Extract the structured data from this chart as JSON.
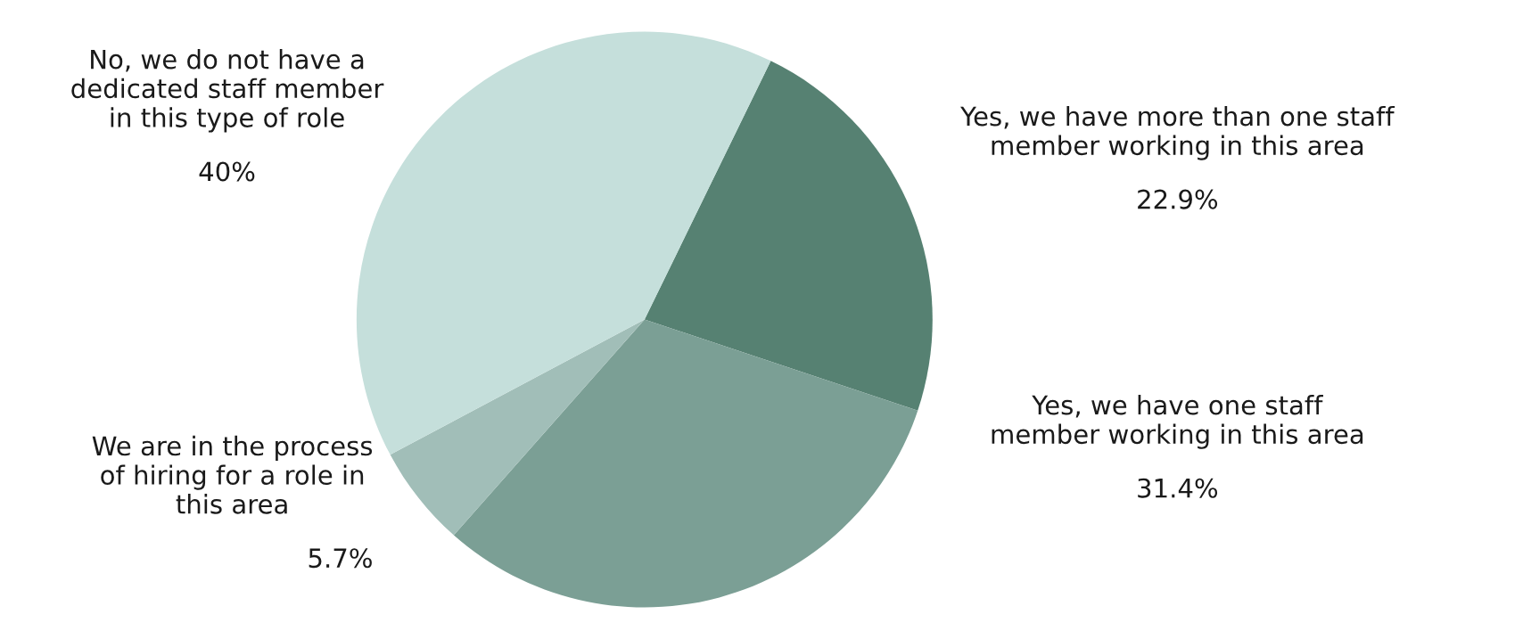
{
  "chart_data": {
    "type": "pie",
    "categories": [
      "Yes, we have more than one staff\nmember working in this area",
      "Yes, we have one staff\nmember working in this area",
      "We are in the process\nof hiring for a role in\nthis area",
      "No, we do not have a\ndedicated staff member\nin this type of role"
    ],
    "values": [
      22.9,
      31.4,
      5.7,
      40
    ],
    "value_labels": [
      "22.9%",
      "31.4%",
      "5.7%",
      "40%"
    ],
    "colors": [
      "#568172",
      "#7b9f95",
      "#a1beb8",
      "#c5dfdb"
    ]
  }
}
